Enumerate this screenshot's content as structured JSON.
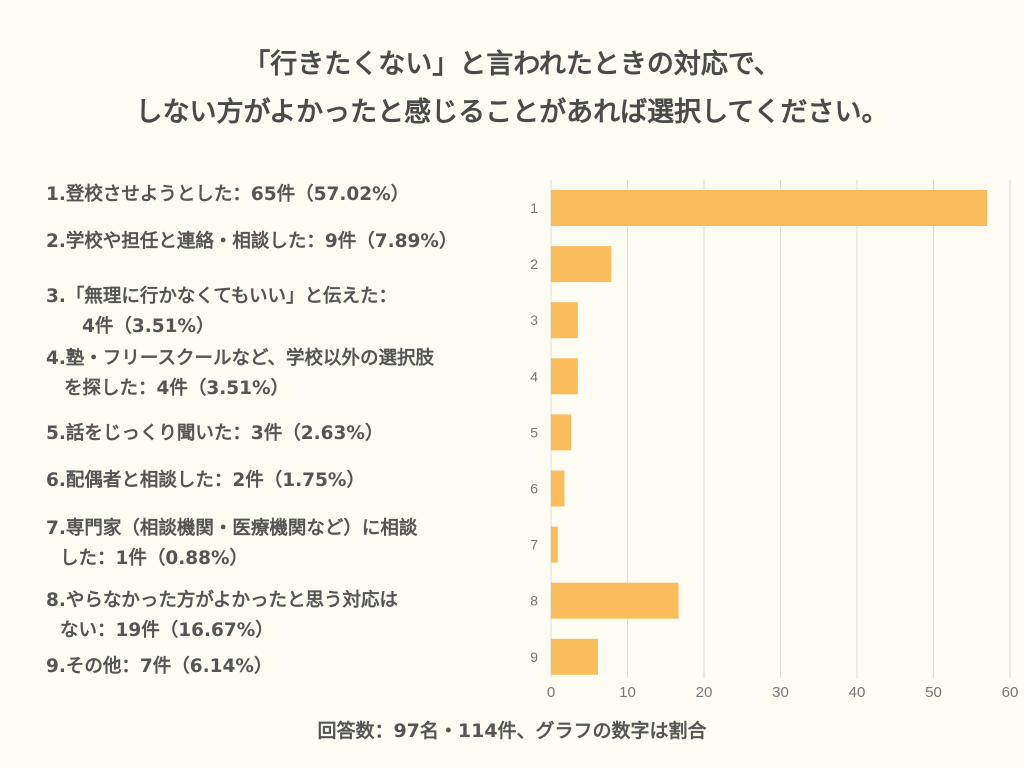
{
  "title": {
    "line1": "「行きたくない」と言われたときの対応で、",
    "line2": "しない方がよかったと感じることがあれば選択してください。"
  },
  "labels": [
    {
      "line1": "1.登校させようとした：65件（57.02%）"
    },
    {
      "line1": "2.学校や担任と連絡・相談した：9件（7.89%）"
    },
    {
      "line1": "3.「無理に行かなくてもいい」と伝えた：",
      "line2": "4件（3.51%）"
    },
    {
      "line1": "4.塾・フリースクールなど、学校以外の選択肢",
      "line2": "を探した：4件（3.51%）"
    },
    {
      "line1": "5.話をじっくり聞いた：3件（2.63%）"
    },
    {
      "line1": "6.配偶者と相談した：2件（1.75%）"
    },
    {
      "line1": "7.専門家（相談機関・医療機関など）に相談",
      "line2": "した：1件（0.88%）"
    },
    {
      "line1": "8.やらなかった方がよかったと思う対応は",
      "line2": "ない：19件（16.67%）"
    },
    {
      "line1": "9.その他：7件（6.14%）"
    }
  ],
  "footer": "回答数：97名・114件、グラフの数字は割合",
  "chart_data": {
    "type": "bar",
    "orientation": "horizontal",
    "categories": [
      "1",
      "2",
      "3",
      "4",
      "5",
      "6",
      "7",
      "8",
      "9"
    ],
    "values": [
      57.02,
      7.89,
      3.51,
      3.51,
      2.63,
      1.75,
      0.88,
      16.67,
      6.14
    ],
    "xlim": [
      0,
      60
    ],
    "xticks": [
      "0",
      "10",
      "20",
      "30",
      "40",
      "50",
      "60"
    ],
    "grid": true,
    "bar_color": "#fbbd5c"
  }
}
